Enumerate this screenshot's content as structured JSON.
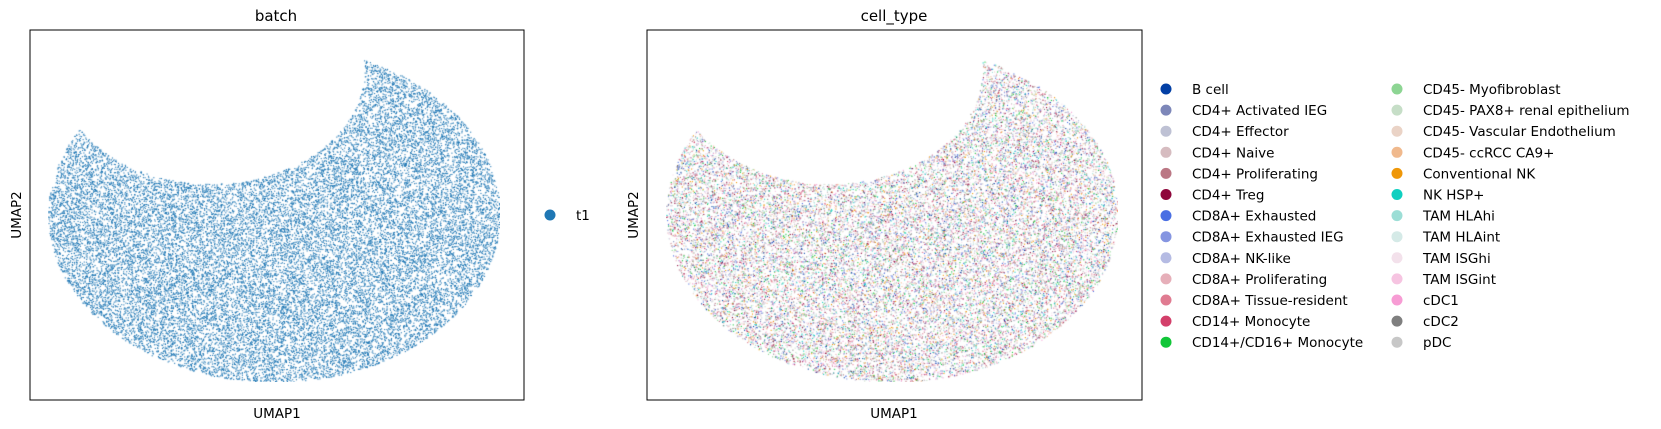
{
  "chart_data": [
    {
      "type": "scatter",
      "title": "batch",
      "xlabel": "UMAP1",
      "ylabel": "UMAP2",
      "xticks": [],
      "yticks": [],
      "legend_placement": "right",
      "series": [
        {
          "name": "t1",
          "color": "#1f77b4"
        }
      ]
    },
    {
      "type": "scatter",
      "title": "cell_type",
      "xlabel": "UMAP1",
      "ylabel": "UMAP2",
      "xticks": [],
      "yticks": [],
      "legend_placement": "right",
      "legend_columns": 2,
      "series": [
        {
          "name": "B cell",
          "color": "#023fa5"
        },
        {
          "name": "CD4+ Activated IEG",
          "color": "#7d87b9"
        },
        {
          "name": "CD4+ Effector",
          "color": "#bec1d4"
        },
        {
          "name": "CD4+ Naive",
          "color": "#d6bcc0"
        },
        {
          "name": "CD4+ Proliferating",
          "color": "#bb7784"
        },
        {
          "name": "CD4+ Treg",
          "color": "#8e063b"
        },
        {
          "name": "CD8A+ Exhausted",
          "color": "#4a6fe3"
        },
        {
          "name": "CD8A+ Exhausted IEG",
          "color": "#8595e1"
        },
        {
          "name": "CD8A+ NK-like",
          "color": "#b5bbe3"
        },
        {
          "name": "CD8A+ Proliferating",
          "color": "#e6afb9"
        },
        {
          "name": "CD8A+ Tissue-resident",
          "color": "#e07b91"
        },
        {
          "name": "CD14+ Monocyte",
          "color": "#d33f6a"
        },
        {
          "name": "CD14+/CD16+ Monocyte",
          "color": "#11c638"
        },
        {
          "name": "CD45- Myofibroblast",
          "color": "#8dd593"
        },
        {
          "name": "CD45- PAX8+ renal epithelium",
          "color": "#c6dec7"
        },
        {
          "name": "CD45- Vascular Endothelium",
          "color": "#ead3c6"
        },
        {
          "name": "CD45- ccRCC CA9+",
          "color": "#f0b98d"
        },
        {
          "name": "Conventional NK",
          "color": "#ef9708"
        },
        {
          "name": "NK HSP+",
          "color": "#0fcfc0"
        },
        {
          "name": "TAM HLAhi",
          "color": "#9cded6"
        },
        {
          "name": "TAM HLAint",
          "color": "#d5eae7"
        },
        {
          "name": "TAM ISGhi",
          "color": "#f3e1eb"
        },
        {
          "name": "TAM ISGint",
          "color": "#f6c4e1"
        },
        {
          "name": "cDC1",
          "color": "#f79cd4"
        },
        {
          "name": "cDC2",
          "color": "#7f7f7f"
        },
        {
          "name": "pDC",
          "color": "#c7c7c7"
        }
      ]
    }
  ]
}
